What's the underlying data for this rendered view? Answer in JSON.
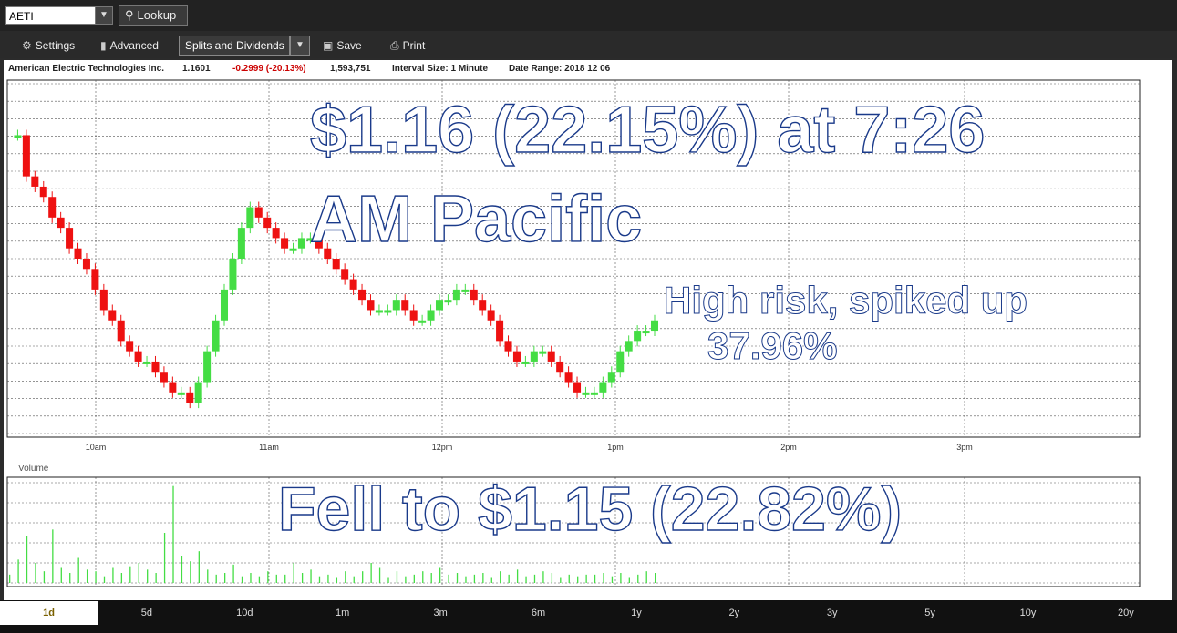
{
  "toolbar": {
    "symbol_value": "AETI",
    "lookup_label": "Lookup",
    "settings_label": "Settings",
    "advanced_label": "Advanced",
    "splits_label": "Splits and Dividends",
    "save_label": "Save",
    "print_label": "Print",
    "icons": {
      "lookup": "search-icon",
      "settings": "gear-icon",
      "advanced": "bar-chart-icon",
      "save": "save-icon",
      "print": "printer-icon",
      "dropdown": "chevron-down-icon"
    }
  },
  "info": {
    "company": "American Electric Technologies Inc.",
    "price": "1.1601",
    "change": "-0.2999 (-20.13%)",
    "volume": "1,593,751",
    "interval_label": "Interval Size:",
    "interval_value": "1 Minute",
    "date_label": "Date Range:",
    "date_value": "2018 12 06"
  },
  "annotations": {
    "headline_1": "$1.16 (22.15%) at 7:26",
    "headline_2": "AM Pacific",
    "risk_1": "High risk, spiked up",
    "risk_2": "37.96%",
    "fell": "Fell to $1.15 (22.82%)"
  },
  "volume_label": "Volume",
  "ranges": [
    "1d",
    "5d",
    "10d",
    "1m",
    "3m",
    "6m",
    "1y",
    "2y",
    "3y",
    "5y",
    "10y",
    "20y"
  ],
  "active_range": "1d",
  "colors": {
    "up": "#44dd44",
    "down": "#ee1111",
    "grid": "#555555",
    "headline": "#ffffff"
  },
  "chart_data": {
    "type": "candlestick",
    "x_ticks": [
      "10am",
      "11am",
      "12pm",
      "1pm",
      "2pm",
      "3pm"
    ],
    "price": [
      1.42,
      1.42,
      1.38,
      1.37,
      1.36,
      1.34,
      1.33,
      1.31,
      1.3,
      1.29,
      1.27,
      1.25,
      1.24,
      1.22,
      1.21,
      1.2,
      1.2,
      1.19,
      1.18,
      1.17,
      1.17,
      1.16,
      1.18,
      1.21,
      1.24,
      1.27,
      1.3,
      1.33,
      1.35,
      1.34,
      1.33,
      1.32,
      1.31,
      1.31,
      1.32,
      1.32,
      1.31,
      1.3,
      1.29,
      1.28,
      1.27,
      1.26,
      1.25,
      1.25,
      1.25,
      1.26,
      1.25,
      1.24,
      1.24,
      1.25,
      1.26,
      1.26,
      1.27,
      1.27,
      1.26,
      1.25,
      1.24,
      1.22,
      1.21,
      1.2,
      1.2,
      1.21,
      1.21,
      1.2,
      1.19,
      1.18,
      1.17,
      1.17,
      1.17,
      1.18,
      1.19,
      1.21,
      1.22,
      1.23,
      1.23,
      1.24
    ],
    "volume": [
      500,
      1400,
      2800,
      1200,
      700,
      3200,
      900,
      600,
      1500,
      800,
      700,
      400,
      900,
      600,
      1000,
      1200,
      800,
      600,
      3000,
      5800,
      1600,
      1300,
      1900,
      800,
      500,
      600,
      1100,
      400,
      600,
      400,
      700,
      500,
      500,
      1200,
      600,
      800,
      400,
      500,
      300,
      700,
      400,
      700,
      1200,
      900,
      300,
      700,
      400,
      500,
      700,
      600,
      900,
      500,
      600,
      400,
      500,
      600,
      300,
      700,
      500,
      800,
      400,
      500,
      700,
      600,
      300,
      500,
      400,
      500,
      500,
      600,
      400,
      600,
      300,
      500,
      700,
      600
    ]
  }
}
